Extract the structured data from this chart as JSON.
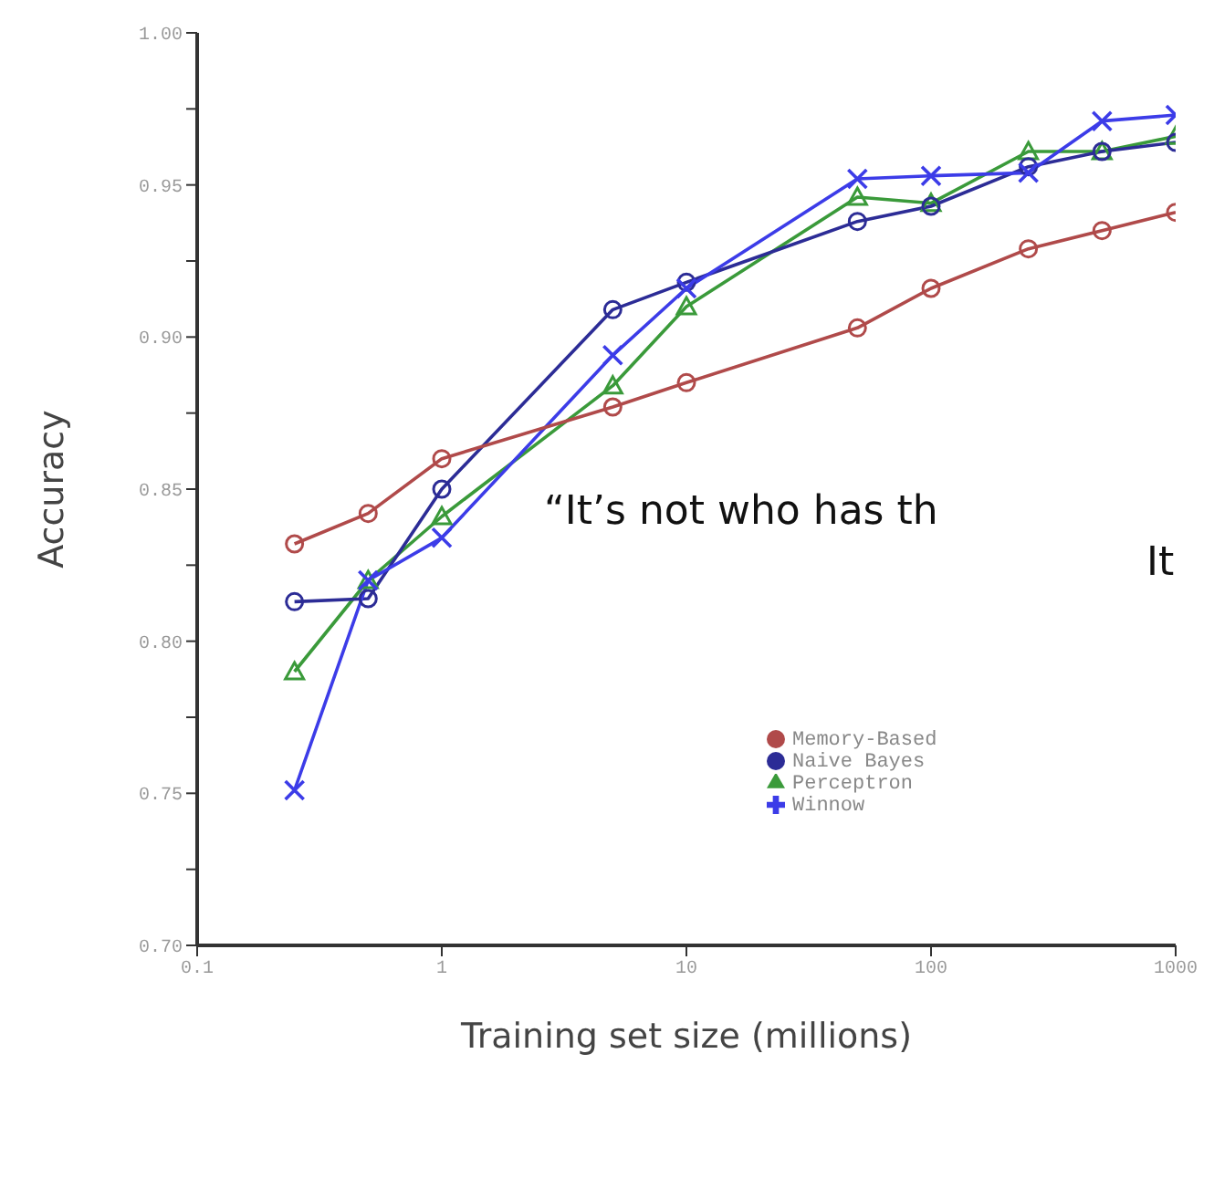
{
  "chart_data": {
    "type": "line",
    "xlabel": "Training set size (millions)",
    "ylabel": "Accuracy",
    "x": [
      0.25,
      0.5,
      1,
      5,
      10,
      50,
      100,
      250,
      500,
      1000
    ],
    "series": [
      {
        "name": "Perceptron",
        "color": "#3a9a3a",
        "marker": "triangle",
        "values": [
          0.79,
          0.82,
          0.841,
          0.884,
          0.91,
          0.946,
          0.944,
          0.961,
          0.961,
          0.966
        ]
      },
      {
        "name": "Naive Bayes",
        "color": "#2c2c96",
        "marker": "circle",
        "values": [
          0.813,
          0.814,
          0.85,
          0.909,
          0.918,
          0.938,
          0.943,
          0.956,
          0.961,
          0.964
        ]
      },
      {
        "name": "Winnow",
        "color": "#3c3ce8",
        "marker": "cross",
        "values": [
          0.751,
          0.82,
          0.834,
          0.894,
          0.916,
          0.952,
          0.953,
          0.954,
          0.971,
          0.973
        ]
      },
      {
        "name": "Memory-Based",
        "color": "#b04a4a",
        "marker": "circle",
        "values": [
          0.832,
          0.842,
          0.86,
          0.877,
          0.885,
          0.903,
          0.916,
          0.929,
          0.935,
          0.941
        ]
      }
    ],
    "log": "x",
    "xlim": [
      0.1,
      1000
    ],
    "xticks": [
      0.1,
      1,
      10,
      100,
      1000
    ],
    "ylim": [
      0.7,
      1.0
    ],
    "yticks": [
      {
        "value": 0.7,
        "label": "0.70"
      },
      {
        "value": 0.725,
        "label": null
      },
      {
        "value": 0.75,
        "label": "0.75"
      },
      {
        "value": 0.775,
        "label": null
      },
      {
        "value": 0.8,
        "label": "0.80"
      },
      {
        "value": 0.825,
        "label": null
      },
      {
        "value": 0.85,
        "label": "0.85"
      },
      {
        "value": 0.875,
        "label": null
      },
      {
        "value": 0.9,
        "label": "0.90"
      },
      {
        "value": 0.925,
        "label": null
      },
      {
        "value": 0.95,
        "label": "0.95"
      },
      {
        "value": 0.975,
        "label": null
      },
      {
        "value": 1.0,
        "label": "1.00"
      }
    ],
    "grid": false,
    "legend": "bottom right",
    "line_style": "solid",
    "annotations": [
      "“It’s not who has th",
      "It"
    ]
  }
}
